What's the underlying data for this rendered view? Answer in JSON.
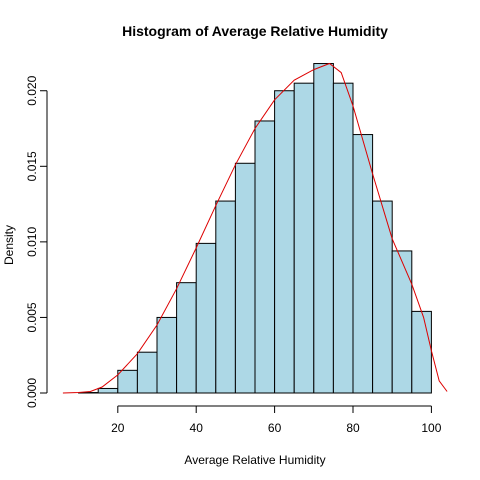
{
  "chart_data": {
    "type": "bar",
    "title": "Histogram of Average Relative Humidity",
    "xlabel": "Average Relative Humidity",
    "ylabel": "Density",
    "xlim": [
      5,
      105
    ],
    "ylim": [
      0,
      0.0221
    ],
    "x_ticks": [
      20,
      40,
      60,
      80,
      100
    ],
    "y_ticks": [
      0.0,
      0.005,
      0.01,
      0.015,
      0.02
    ],
    "y_tick_labels": [
      "0.000",
      "0.005",
      "0.010",
      "0.015",
      "0.020"
    ],
    "bin_edges": [
      10,
      15,
      20,
      25,
      30,
      35,
      40,
      45,
      50,
      55,
      60,
      65,
      70,
      75,
      80,
      85,
      90,
      95,
      100
    ],
    "values": [
      3e-05,
      0.0003,
      0.0015,
      0.0027,
      0.005,
      0.0073,
      0.0099,
      0.0127,
      0.0152,
      0.018,
      0.02,
      0.0205,
      0.0218,
      0.0205,
      0.0171,
      0.0127,
      0.0094,
      0.0054
    ],
    "bar_fill": "#add8e6",
    "density_curve": {
      "color": "#dd0000",
      "x": [
        6,
        10,
        13,
        16,
        20,
        25,
        30,
        35,
        40,
        45,
        50,
        55,
        60,
        65,
        70,
        74,
        77,
        80,
        85,
        90,
        95,
        98,
        100,
        102,
        104
      ],
      "y": [
        0.0,
        3e-05,
        0.0001,
        0.0004,
        0.0012,
        0.0026,
        0.0045,
        0.0069,
        0.0096,
        0.0124,
        0.0151,
        0.0175,
        0.0194,
        0.0207,
        0.0214,
        0.0218,
        0.0212,
        0.019,
        0.0145,
        0.0102,
        0.0072,
        0.005,
        0.0028,
        0.0008,
        0.0001
      ]
    }
  }
}
